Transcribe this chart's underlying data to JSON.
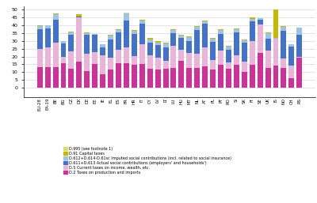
{
  "countries": [
    "EU-28",
    "EA-19",
    "BE",
    "BG",
    "CZ",
    "DK",
    "DE",
    "EE",
    "IE",
    "EL",
    "ES",
    "FR",
    "HR",
    "IT",
    "CY",
    "LV",
    "LT",
    "LU",
    "HU",
    "MT",
    "NL",
    "AT",
    "PL",
    "PT",
    "RO",
    "SI",
    "SK",
    "FI",
    "SE",
    "UK",
    "IS",
    "NO",
    "CH",
    "RS"
  ],
  "d2": [
    13.0,
    13.0,
    13.0,
    15.5,
    12.0,
    16.5,
    10.8,
    15.0,
    8.5,
    11.5,
    15.5,
    15.5,
    14.5,
    15.0,
    12.0,
    11.5,
    12.0,
    12.5,
    17.5,
    12.5,
    12.5,
    13.5,
    11.5,
    14.5,
    12.0,
    14.5,
    10.0,
    14.5,
    22.5,
    12.5,
    14.0,
    12.5,
    6.0,
    19.5
  ],
  "d5": [
    12.0,
    13.0,
    16.0,
    4.5,
    11.5,
    28.5,
    11.0,
    8.0,
    12.5,
    8.0,
    9.0,
    10.5,
    6.0,
    13.0,
    9.0,
    8.0,
    5.5,
    14.5,
    7.0,
    10.0,
    9.5,
    12.5,
    6.5,
    9.5,
    4.0,
    6.5,
    6.5,
    15.5,
    18.0,
    11.5,
    17.5,
    6.5,
    8.0,
    0.5
  ],
  "d611_d613": [
    12.5,
    12.0,
    14.5,
    8.5,
    10.5,
    0.5,
    12.0,
    11.0,
    5.0,
    11.5,
    11.0,
    17.0,
    14.0,
    13.0,
    8.0,
    8.0,
    8.5,
    8.0,
    7.5,
    7.5,
    15.0,
    15.0,
    11.5,
    10.5,
    8.5,
    14.5,
    12.5,
    12.5,
    3.0,
    7.5,
    0.0,
    17.5,
    12.5,
    14.0
  ],
  "d612_d614": [
    2.0,
    2.0,
    3.5,
    1.5,
    1.5,
    0.0,
    1.0,
    0.5,
    2.0,
    2.5,
    1.5,
    4.5,
    2.0,
    2.0,
    2.0,
    1.5,
    2.5,
    2.0,
    1.5,
    2.5,
    2.0,
    1.5,
    2.0,
    2.5,
    2.0,
    2.0,
    1.5,
    1.5,
    1.0,
    3.5,
    0.5,
    2.5,
    1.5,
    4.5
  ],
  "d91": [
    0.5,
    0.0,
    0.5,
    0.0,
    0.5,
    1.5,
    0.5,
    0.0,
    0.0,
    0.5,
    0.5,
    0.0,
    0.5,
    0.5,
    1.0,
    1.0,
    0.5,
    0.5,
    0.5,
    0.5,
    0.5,
    0.5,
    0.5,
    0.5,
    0.5,
    0.5,
    0.5,
    1.0,
    0.0,
    0.5,
    18.0,
    0.5,
    0.0,
    0.0
  ],
  "d995": [
    0.0,
    0.0,
    0.0,
    0.0,
    0.0,
    0.0,
    0.0,
    0.0,
    0.0,
    0.0,
    0.0,
    0.5,
    0.0,
    0.0,
    0.0,
    0.0,
    0.0,
    0.0,
    0.0,
    0.0,
    0.0,
    0.0,
    0.0,
    0.0,
    0.0,
    0.0,
    0.0,
    0.0,
    0.0,
    0.0,
    0.0,
    0.0,
    0.0,
    0.0
  ],
  "colors": {
    "d2": "#cc3399",
    "d5": "#e8b4d8",
    "d611_d613": "#4472c4",
    "d612_d614": "#9dc3e6",
    "d91": "#c5b800",
    "d995": "#d4e06e"
  },
  "legend_labels": [
    "D.995 (see footnote 1)",
    "D.91 Capital taxes",
    "D.612+D.614-D.61sc Imputed social contributions (incl. related to social insurance)",
    "D.611+D.613 Actual social contributions (employers' and households')",
    "D.5 Current taxes on income, wealth, etc.",
    "D.2 Taxes on production and imports"
  ],
  "ylim": [
    -6,
    52
  ],
  "yticks": [
    0,
    5,
    10,
    15,
    20,
    25,
    30,
    35,
    40,
    45,
    50
  ],
  "bgcolor": "#ffffff",
  "grid_color": "#d0d0d0"
}
